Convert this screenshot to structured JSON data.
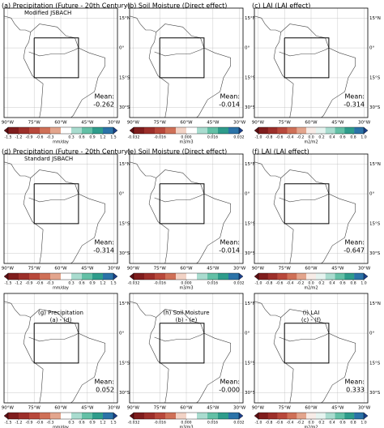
{
  "panels": [
    {
      "title": "(a) Precipitation (Future - 20th Century)",
      "subtitle": "Modified JSBACH",
      "mean_label": "Mean:",
      "mean": -0.262,
      "colorbar": 0
    },
    {
      "title": "(b) Soil Moisture (Direct effect)",
      "mean_label": "Mean:",
      "mean": -0.014,
      "colorbar": 1
    },
    {
      "title": "(c) LAI (LAI effect)",
      "mean_label": "Mean:",
      "mean": -0.314,
      "colorbar": 2
    },
    {
      "title": "(d) Precipitation (Future - 20th Century)",
      "subtitle": "Standard JSBACH",
      "mean_label": "Mean:",
      "mean": -0.314,
      "colorbar": 0
    },
    {
      "title": "(e) Soil Moisture (Direct effect)",
      "mean_label": "Mean:",
      "mean": -0.014,
      "colorbar": 1
    },
    {
      "title": "(f) LAI (LAI effect)",
      "mean_label": "Mean:",
      "mean": -0.647,
      "colorbar": 2
    },
    {
      "title": "(g) Precipitation",
      "subtitle": "(a) - (d)",
      "mean_label": "Mean:",
      "mean": 0.052,
      "colorbar": 0
    },
    {
      "title": "(h) Soil Moisture",
      "subtitle": "(b) - (e)",
      "mean_label": "Mean:",
      "mean": {
        "value": 0,
        "label": "-0.000"
      },
      "colorbar": 1
    },
    {
      "title": "(i) LAI",
      "subtitle": "(c) - (f)",
      "mean_label": "Mean:",
      "mean": 0.333,
      "colorbar": 2
    }
  ],
  "colorbars": [
    {
      "unit": "mm/day",
      "ticks": [
        -1.5,
        -1.2,
        -0.9,
        -0.6,
        -0.3,
        0.3,
        0.6,
        0.9,
        1.2,
        1.5
      ],
      "colors": [
        "#5e0f14",
        "#7f1d1d",
        "#9c2f2a",
        "#b8483b",
        "#cf7057",
        "#e3a58d",
        "#ffffff",
        "#a9dccf",
        "#63c0a6",
        "#2e9c8b",
        "#2b73a8",
        "#1b3f8b"
      ]
    },
    {
      "unit": "m3/m3",
      "ticks": [
        -0.032,
        -0.016,
        {
          "value": 0,
          "label": "0.000"
        },
        0.016,
        0.032
      ],
      "colors": [
        "#5e0f14",
        "#7f1d1d",
        "#9c2f2a",
        "#b8483b",
        "#cf7057",
        "#f2d3c6",
        "#ffffff",
        "#a9dccf",
        "#63c0a6",
        "#2e9c8b",
        "#2b73a8",
        "#1b3f8b"
      ]
    },
    {
      "unit": "m2/m2",
      "ticks": [
        {
          "value": -1,
          "label": "-1.0"
        },
        -0.8,
        -0.6,
        -0.4,
        -0.2,
        {
          "value": 0,
          "label": "0.0"
        },
        0.2,
        0.4,
        0.6,
        0.8,
        {
          "value": 1,
          "label": "1.0"
        }
      ],
      "colors": [
        "#5e0f14",
        "#7f1d1d",
        "#9c2f2a",
        "#b8483b",
        "#cf7057",
        "#e3a58d",
        "#f7ece7",
        "#e6f4f0",
        "#a9dccf",
        "#63c0a6",
        "#2e9c8b",
        "#2b73a8",
        "#1b3f8b"
      ]
    }
  ],
  "lonticks": [
    {
      "value": -90,
      "label": "90°W"
    },
    {
      "value": -75,
      "label": "75°W"
    },
    {
      "value": -60,
      "label": "60°W"
    },
    {
      "value": -45,
      "label": "45°W"
    },
    {
      "value": -30,
      "label": "30°W"
    }
  ],
  "latticks": [
    {
      "value": 15,
      "label": "15°N"
    },
    {
      "value": 0,
      "label": "0°"
    },
    {
      "value": -15,
      "label": "15°S"
    },
    {
      "value": -30,
      "label": "30°S"
    }
  ]
}
